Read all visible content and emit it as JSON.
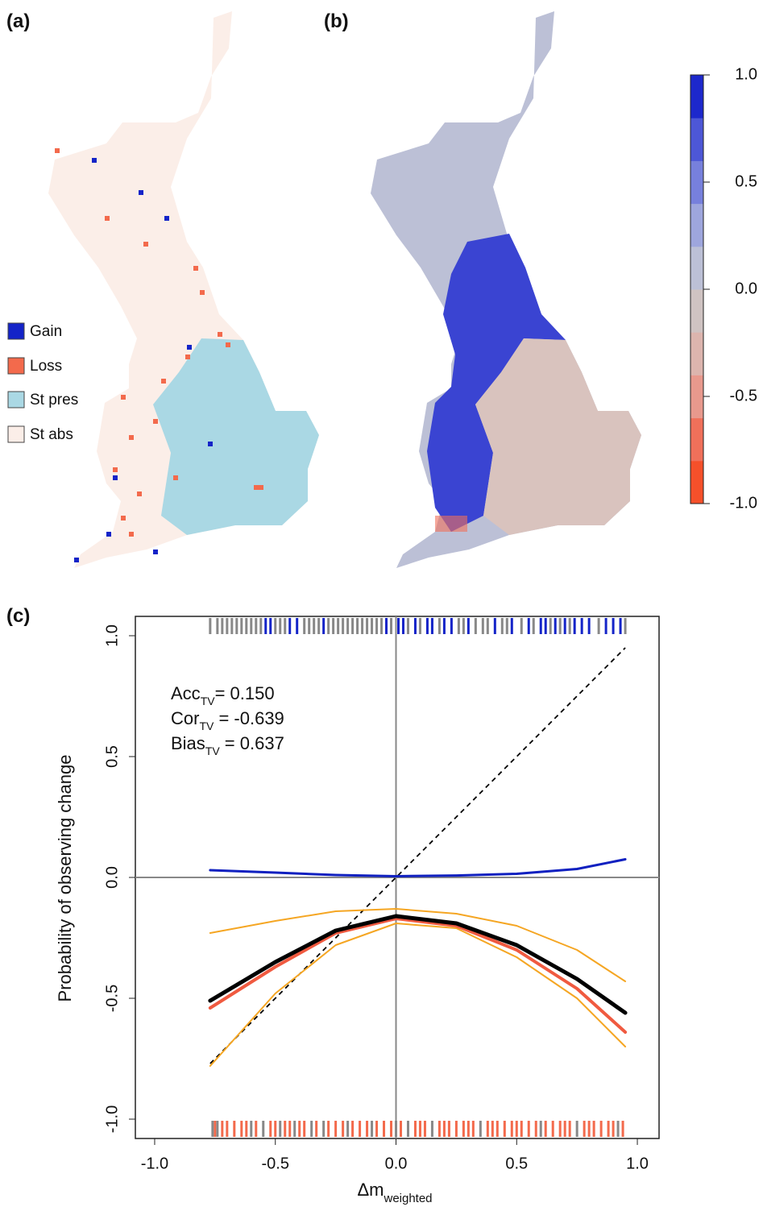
{
  "chart_data": {
    "type": "line",
    "panel_labels": [
      "(a)",
      "(b)",
      "(c)"
    ],
    "map_legend": {
      "labels": [
        "Gain",
        "Loss",
        "St pres",
        "St abs"
      ],
      "colors": [
        "#1424c8",
        "#f36a4c",
        "#aad8e4",
        "#fbeee8"
      ]
    },
    "colorbar": {
      "clim": [
        -1,
        1
      ],
      "colors": [
        "#f5502a",
        "#f0705a",
        "#e8998d",
        "#dcb5ae",
        "#cfc3c2",
        "#bcc0d6",
        "#9ea6dd",
        "#7780dc",
        "#4d57d6",
        "#1d28cc"
      ],
      "ticks": [
        {
          "value": 1,
          "label": "1.0"
        },
        {
          "value": 0.5,
          "label": "0.5"
        },
        {
          "value": 0,
          "label": "0.0"
        },
        {
          "value": -0.5,
          "label": "-0.5"
        },
        {
          "value": -1,
          "label": "-1.0"
        }
      ]
    },
    "ylabel": "Probability of observing change",
    "xlabel": {
      "main": "Δm",
      "sub": "weighted"
    },
    "annotations": [
      {
        "main": "Acc",
        "sub": "TV",
        "rest": "= 0.150"
      },
      {
        "main": "Cor",
        "sub": "TV",
        "rest": " = -0.639"
      },
      {
        "main": "Bias",
        "sub": "TV",
        "rest": " = 0.637"
      }
    ],
    "xlim": [
      -1.08,
      1.09
    ],
    "ylim": [
      -1.08,
      1.08
    ],
    "xticks": [
      {
        "value": -1,
        "label": "-1.0"
      },
      {
        "value": -0.5,
        "label": "-0.5"
      },
      {
        "value": 0,
        "label": "0.0"
      },
      {
        "value": 0.5,
        "label": "0.5"
      },
      {
        "value": 1,
        "label": "1.0"
      }
    ],
    "yticks": [
      {
        "value": -1,
        "label": "-1.0"
      },
      {
        "value": -0.5,
        "label": "-0.5"
      },
      {
        "value": 0,
        "label": "0.0"
      },
      {
        "value": 0.5,
        "label": "0.5"
      },
      {
        "value": 1,
        "label": "1.0"
      }
    ],
    "hline": 0,
    "vline": 0,
    "x": [
      -0.77,
      -0.5,
      -0.25,
      0,
      0.25,
      0.5,
      0.75,
      0.95
    ],
    "series": [
      {
        "color": "#f5a623",
        "width": 2,
        "values": [
          -0.23,
          -0.18,
          -0.14,
          -0.13,
          -0.15,
          -0.2,
          -0.3,
          -0.43
        ]
      },
      {
        "color": "#f5a623",
        "width": 2,
        "values": [
          -0.78,
          -0.48,
          -0.28,
          -0.19,
          -0.21,
          -0.33,
          -0.5,
          -0.7
        ]
      },
      {
        "color": "#f05a40",
        "width": 4,
        "values": [
          -0.54,
          -0.37,
          -0.23,
          -0.17,
          -0.2,
          -0.3,
          -0.46,
          -0.64
        ]
      },
      {
        "color": "#000000",
        "width": 5,
        "values": [
          -0.51,
          -0.35,
          -0.22,
          -0.16,
          -0.19,
          -0.28,
          -0.42,
          -0.56
        ]
      },
      {
        "color": "#1020c0",
        "width": 3,
        "values": [
          0.03,
          0.02,
          0.01,
          0.005,
          0.008,
          0.015,
          0.035,
          0.075
        ]
      }
    ],
    "identity_line": {
      "x": [
        -0.77,
        0.95
      ],
      "values": [
        -0.77,
        0.95
      ],
      "color": "#000000"
    },
    "rugs": [
      {
        "side": "top",
        "color": "#888888",
        "x": [
          -0.77,
          -0.74,
          -0.72,
          -0.7,
          -0.68,
          -0.66,
          -0.64,
          -0.62,
          -0.6,
          -0.58,
          -0.56,
          -0.5,
          -0.48,
          -0.46,
          -0.38,
          -0.36,
          -0.34,
          -0.32,
          -0.28,
          -0.26,
          -0.24,
          -0.22,
          -0.2,
          -0.18,
          -0.16,
          -0.14,
          -0.12,
          -0.1,
          -0.08,
          -0.06,
          -0.02,
          0.05,
          0.1,
          0.18,
          0.26,
          0.28,
          0.33,
          0.36,
          0.38,
          0.44,
          0.46,
          0.52,
          0.57,
          0.64,
          0.68,
          0.72,
          0.84,
          0.95
        ]
      },
      {
        "side": "top",
        "color": "#1424c8",
        "x": [
          -0.54,
          -0.52,
          -0.44,
          -0.41,
          -0.3,
          -0.04,
          0.01,
          0.03,
          0.08,
          0.13,
          0.15,
          0.2,
          0.23,
          0.3,
          0.41,
          0.48,
          0.55,
          0.6,
          0.62,
          0.66,
          0.7,
          0.74,
          0.77,
          0.8,
          0.87,
          0.9,
          0.93
        ]
      },
      {
        "side": "bottom",
        "color": "#f36a4c",
        "x": [
          -0.75,
          -0.72,
          -0.7,
          -0.67,
          -0.64,
          -0.62,
          -0.58,
          -0.52,
          -0.5,
          -0.46,
          -0.44,
          -0.4,
          -0.38,
          -0.33,
          -0.28,
          -0.25,
          -0.22,
          -0.18,
          -0.15,
          -0.12,
          -0.08,
          -0.05,
          -0.02,
          0.02,
          0.08,
          0.1,
          0.12,
          0.18,
          0.2,
          0.22,
          0.25,
          0.28,
          0.3,
          0.32,
          0.38,
          0.4,
          0.42,
          0.45,
          0.48,
          0.5,
          0.52,
          0.55,
          0.58,
          0.62,
          0.65,
          0.68,
          0.7,
          0.72,
          0.78,
          0.8,
          0.82,
          0.85,
          0.88,
          0.9,
          0.94
        ]
      },
      {
        "side": "bottom",
        "color": "#888888",
        "x": [
          -0.76,
          -0.74,
          -0.6,
          -0.55,
          -0.48,
          -0.42,
          -0.35,
          -0.3,
          -0.2,
          -0.1,
          0.0,
          0.05,
          0.15,
          0.35,
          0.6,
          0.75,
          0.92
        ]
      }
    ]
  }
}
